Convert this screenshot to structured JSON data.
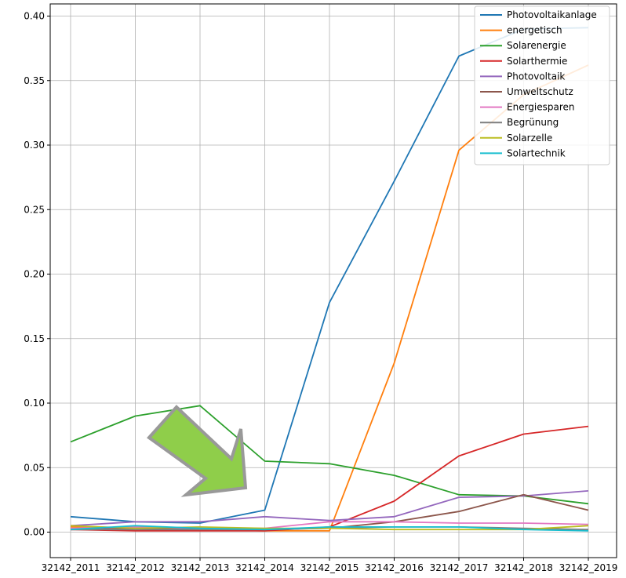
{
  "chart_data": {
    "type": "line",
    "title": "",
    "xlabel": "",
    "ylabel": "",
    "categories": [
      "32142_2011",
      "32142_2012",
      "32142_2013",
      "32142_2014",
      "32142_2015",
      "32142_2016",
      "32142_2017",
      "32142_2018",
      "32142_2019"
    ],
    "ylim": [
      -0.02,
      0.41
    ],
    "yticks": [
      "0.00",
      "0.05",
      "0.10",
      "0.15",
      "0.20",
      "0.25",
      "0.30",
      "0.35",
      "0.40"
    ],
    "grid": true,
    "legend_position": "top-right",
    "series": [
      {
        "name": "Photovoltaikanlage",
        "color": "#1f77b4",
        "values": [
          0.012,
          0.008,
          0.007,
          0.017,
          0.178,
          0.272,
          0.369,
          0.39,
          0.391
        ]
      },
      {
        "name": "energetisch",
        "color": "#ff7f0e",
        "values": [
          0.004,
          0.003,
          0.002,
          0.001,
          0.001,
          0.131,
          0.296,
          0.339,
          0.362
        ]
      },
      {
        "name": "Solarenergie",
        "color": "#2ca02c",
        "values": [
          0.07,
          0.09,
          0.098,
          0.055,
          0.053,
          0.044,
          0.029,
          0.028,
          0.022
        ]
      },
      {
        "name": "Solarthermie",
        "color": "#d62728",
        "values": [
          0.002,
          0.001,
          0.001,
          0.001,
          0.004,
          0.024,
          0.059,
          0.076,
          0.082
        ]
      },
      {
        "name": "Photovoltaik",
        "color": "#9467bd",
        "values": [
          0.005,
          0.008,
          0.008,
          0.012,
          0.009,
          0.012,
          0.027,
          0.028,
          0.032
        ]
      },
      {
        "name": "Umweltschutz",
        "color": "#8c564b",
        "values": [
          0.002,
          0.003,
          0.003,
          0.002,
          0.003,
          0.008,
          0.016,
          0.029,
          0.017
        ]
      },
      {
        "name": "Energiesparen",
        "color": "#e377c2",
        "values": [
          0.003,
          0.004,
          0.003,
          0.003,
          0.008,
          0.008,
          0.007,
          0.007,
          0.006
        ]
      },
      {
        "name": "Begrünung",
        "color": "#7f7f7f",
        "values": [
          0.002,
          0.002,
          0.002,
          0.002,
          0.003,
          0.004,
          0.004,
          0.003,
          0.002
        ]
      },
      {
        "name": "Solarzelle",
        "color": "#bcbd22",
        "values": [
          0.005,
          0.003,
          0.004,
          0.003,
          0.003,
          0.002,
          0.002,
          0.002,
          0.005
        ]
      },
      {
        "name": "Solartechnik",
        "color": "#17becf",
        "values": [
          0.002,
          0.005,
          0.003,
          0.002,
          0.004,
          0.004,
          0.004,
          0.002,
          0.001
        ]
      }
    ]
  },
  "annotation": {
    "type": "arrow",
    "color": "#8fce4a",
    "outline": "#999999",
    "icon": "arrow-down-right-icon"
  }
}
